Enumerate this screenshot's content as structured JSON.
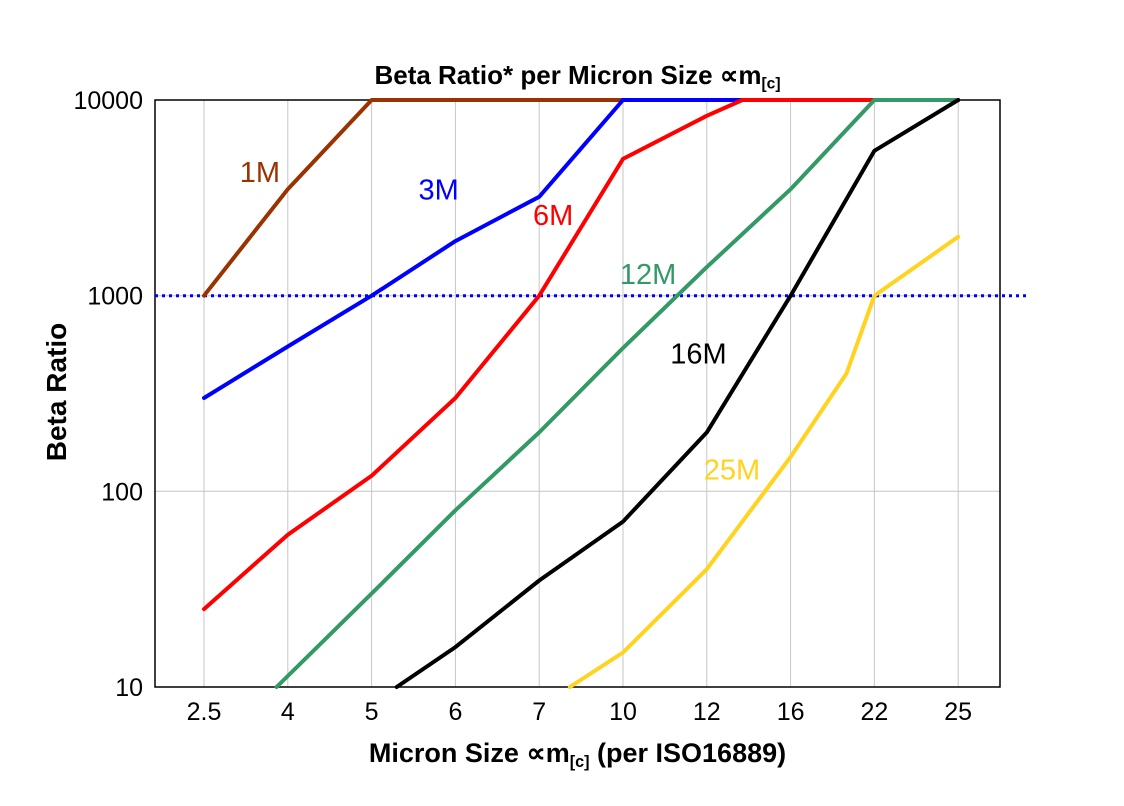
{
  "title": {
    "text": "Beta Ratio* per Micron Size ",
    "unit": "∝m",
    "unit_sub": "[c]"
  },
  "axes": {
    "y_title": "Beta Ratio",
    "x_title": {
      "pre": "Micron Size ",
      "unit": "∝m",
      "unit_sub": "[c]",
      "post": " (per ISO16889)"
    },
    "y_ticks": [
      "10000",
      "1000",
      "100",
      "10"
    ],
    "x_ticks": [
      "2.5",
      "4",
      "5",
      "6",
      "7",
      "10",
      "12",
      "16",
      "22",
      "25"
    ]
  },
  "colors": {
    "grid": "#c6c6c6",
    "frame": "#000000",
    "text": "#000000",
    "reference": "#0000ff"
  },
  "chart_data": {
    "type": "line",
    "title": "Beta Ratio* per Micron Size ∝m[c]",
    "xlabel": "Micron Size ∝m[c] (per ISO16889)",
    "ylabel": "Beta Ratio",
    "x_categories": [
      2.5,
      4,
      5,
      6,
      7,
      10,
      12,
      16,
      22,
      25
    ],
    "y_scale": "log",
    "ylim": [
      10,
      10000
    ],
    "grid": true,
    "legend_position": "inline-labels",
    "reference_line": {
      "y": 1000,
      "style": "dotted",
      "color": "#0000ff"
    },
    "series": [
      {
        "name": "1M",
        "color": "#993300",
        "label_pos": [
          3.5,
          3800
        ],
        "points": [
          [
            2.5,
            1000
          ],
          [
            4,
            3500
          ],
          [
            5,
            10000
          ],
          [
            25,
            10000
          ]
        ]
      },
      {
        "name": "3M",
        "color": "#0000ff",
        "label_pos": [
          5.8,
          3100
        ],
        "points": [
          [
            2.5,
            300
          ],
          [
            4,
            550
          ],
          [
            5,
            1000
          ],
          [
            6,
            1900
          ],
          [
            7,
            3200
          ],
          [
            10,
            10000
          ],
          [
            25,
            10000
          ]
        ]
      },
      {
        "name": "6M",
        "color": "#ff0000",
        "label_pos": [
          7.5,
          2300
        ],
        "points": [
          [
            2.5,
            25
          ],
          [
            4,
            60
          ],
          [
            5,
            120
          ],
          [
            6,
            300
          ],
          [
            7,
            1000
          ],
          [
            10,
            5000
          ],
          [
            12,
            8300
          ],
          [
            13.7,
            10000
          ],
          [
            25,
            10000
          ]
        ]
      },
      {
        "name": "12M",
        "color": "#339966",
        "label_pos": [
          10.6,
          1150
        ],
        "points": [
          [
            3.8,
            10
          ],
          [
            5,
            30
          ],
          [
            6,
            80
          ],
          [
            7,
            200
          ],
          [
            10,
            540
          ],
          [
            12,
            1400
          ],
          [
            16,
            3500
          ],
          [
            22,
            10000
          ],
          [
            25,
            10000
          ]
        ]
      },
      {
        "name": "16M",
        "color": "#000000",
        "label_pos": [
          11.8,
          450
        ],
        "points": [
          [
            5.3,
            10
          ],
          [
            6,
            16
          ],
          [
            7,
            35
          ],
          [
            10,
            70
          ],
          [
            12,
            200
          ],
          [
            16,
            1000
          ],
          [
            22,
            5500
          ],
          [
            25,
            10000
          ]
        ]
      },
      {
        "name": "25M",
        "color": "#ffd320",
        "label_pos": [
          13.2,
          115
        ],
        "points": [
          [
            8.1,
            10
          ],
          [
            10,
            15
          ],
          [
            12,
            40
          ],
          [
            16,
            150
          ],
          [
            20,
            400
          ],
          [
            22,
            1000
          ],
          [
            25,
            2000
          ]
        ]
      }
    ]
  }
}
